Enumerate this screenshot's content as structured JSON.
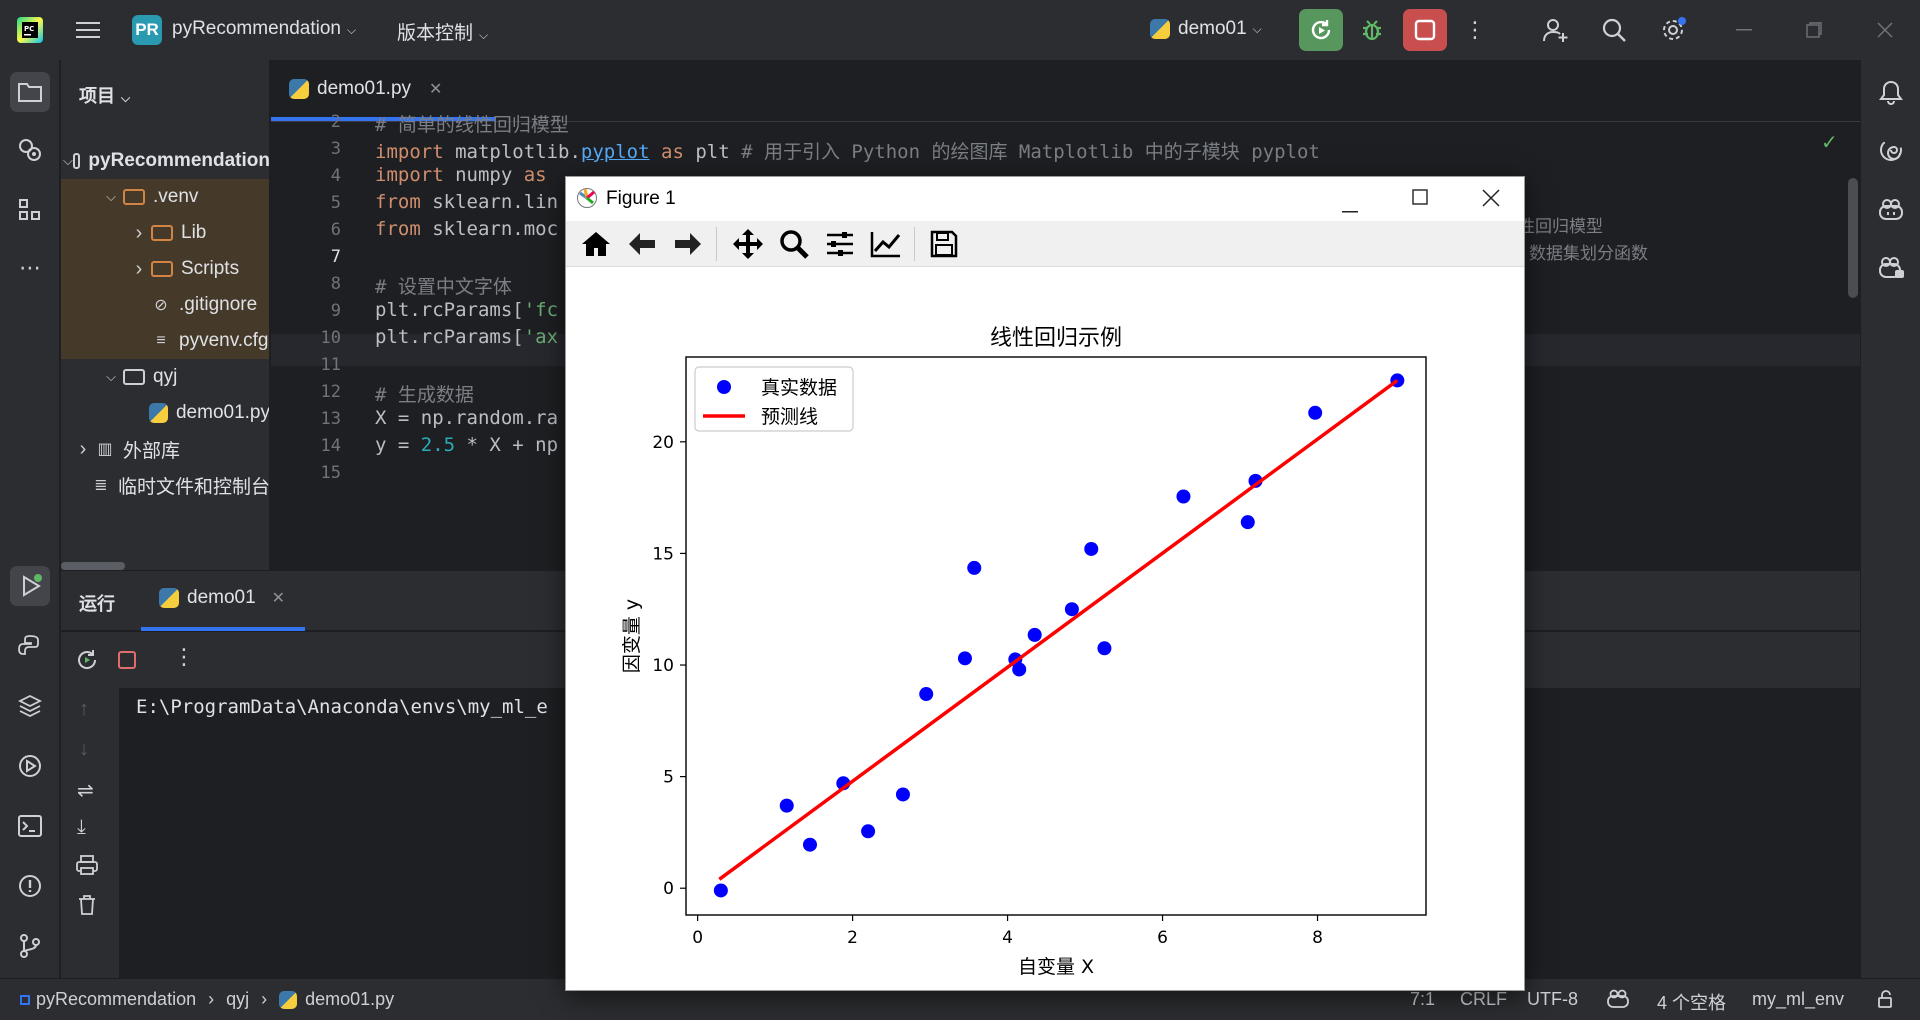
{
  "titlebar": {
    "project_badge": "PR",
    "project_name": "pyRecommendation",
    "vcs_label": "版本控制",
    "run_config": "demo01"
  },
  "left_strip": {
    "items": [
      "folder-icon",
      "project-structure-icon",
      "plugins-icon",
      "more-icon",
      "run-icon",
      "python-console-icon",
      "layers-icon",
      "services-icon",
      "terminal-icon",
      "problems-icon",
      "git-icon"
    ]
  },
  "project_panel": {
    "header": "项目",
    "tree": [
      {
        "label": "pyRecommendation",
        "kind": "folder",
        "depth": 1,
        "expanded": true,
        "bold": true
      },
      {
        "label": ".venv",
        "kind": "folder-orange",
        "depth": 2,
        "expanded": true
      },
      {
        "label": "Lib",
        "kind": "folder-orange",
        "depth": 3,
        "expanded": false
      },
      {
        "label": "Scripts",
        "kind": "folder-orange",
        "depth": 3,
        "expanded": false
      },
      {
        "label": ".gitignore",
        "kind": "ignore",
        "depth": 3
      },
      {
        "label": "pyvenv.cfg",
        "kind": "text",
        "depth": 3
      },
      {
        "label": "qyj",
        "kind": "folder",
        "depth": 2,
        "expanded": true
      },
      {
        "label": "demo01.py",
        "kind": "python",
        "depth": 3
      },
      {
        "label": "外部库",
        "kind": "library",
        "depth": 1,
        "expanded": false
      },
      {
        "label": "临时文件和控制台",
        "kind": "scratch",
        "depth": 1
      }
    ]
  },
  "editor": {
    "tab_label": "demo01.py",
    "line_numbers": [
      "2",
      "3",
      "4",
      "5",
      "6",
      "7",
      "8",
      "9",
      "10",
      "11",
      "12",
      "13",
      "14",
      "15"
    ],
    "lines": [
      {
        "n": "3",
        "parts": [
          [
            "kw",
            "import "
          ],
          [
            "",
            "matplotlib."
          ],
          [
            "lnk",
            "pyplot"
          ],
          [
            "kw",
            " as "
          ],
          [
            "",
            "plt "
          ],
          [
            "cm",
            "# 用于引入 Python 的绘图库 Matplotlib 中的子模块 pyplot"
          ]
        ]
      },
      {
        "n": "4",
        "parts": [
          [
            "kw",
            "import "
          ],
          [
            "",
            "numpy "
          ],
          [
            "kw",
            "as"
          ]
        ]
      },
      {
        "n": "5",
        "parts": [
          [
            "kw",
            "from "
          ],
          [
            "",
            "sklearn.lin"
          ]
        ]
      },
      {
        "n": "6",
        "parts": [
          [
            "kw",
            "from "
          ],
          [
            "",
            "sklearn.moc"
          ]
        ]
      },
      {
        "n": "8",
        "parts": [
          [
            "cm",
            "# 设置中文字体"
          ]
        ]
      },
      {
        "n": "9",
        "parts": [
          [
            "",
            "plt.rcParams["
          ],
          [
            "str",
            "'fc"
          ]
        ]
      },
      {
        "n": "10",
        "parts": [
          [
            "",
            "plt.rcParams["
          ],
          [
            "str",
            "'ax"
          ]
        ]
      },
      {
        "n": "12",
        "parts": [
          [
            "cm",
            "# 生成数据"
          ]
        ]
      },
      {
        "n": "13",
        "parts": [
          [
            "",
            "X = np.random.ra"
          ]
        ]
      },
      {
        "n": "14",
        "parts": [
          [
            "",
            "y = "
          ],
          [
            "num",
            "2.5"
          ],
          [
            "",
            " * X + np"
          ]
        ]
      }
    ],
    "partial_line_2": "# 简单的线性回归模型",
    "right_comment_5": "性回归模型",
    "right_comment_6": "数据集划分函数"
  },
  "run_panel": {
    "title": "运行",
    "tab_label": "demo01",
    "console_line": "E:\\ProgramData\\Anaconda\\envs\\my_ml_e"
  },
  "statusbar": {
    "crumbs": [
      "pyRecommendation",
      "qyj",
      "demo01.py"
    ],
    "position": "7:1",
    "line_sep": "CRLF",
    "encoding": "UTF-8",
    "indent": "4 个空格",
    "interpreter": "my_ml_env"
  },
  "figure": {
    "window_title": "Figure 1",
    "tools": [
      "home-icon",
      "back-icon",
      "forward-icon",
      "pan-icon",
      "zoom-icon",
      "subplots-icon",
      "edit-axes-icon",
      "save-icon"
    ]
  },
  "chart_data": {
    "type": "scatter",
    "title": "线性回归示例",
    "xlabel": "自变量 X",
    "ylabel": "因变量 y",
    "xlim": [
      -0.15,
      9.4
    ],
    "ylim": [
      -1.2,
      23.8
    ],
    "xticks": [
      0,
      2,
      4,
      6,
      8
    ],
    "yticks": [
      0,
      5,
      10,
      15,
      20
    ],
    "legend_position": "upper-left",
    "series": [
      {
        "name": "真实数据",
        "kind": "scatter",
        "color": "#0000ff",
        "x": [
          0.3,
          1.15,
          1.45,
          1.88,
          2.2,
          2.65,
          2.95,
          3.45,
          3.57,
          4.1,
          4.15,
          4.35,
          4.83,
          5.08,
          5.25,
          6.27,
          7.1,
          7.2,
          7.97,
          9.03
        ],
        "y": [
          -0.1,
          3.7,
          1.95,
          4.7,
          2.55,
          4.2,
          8.7,
          10.3,
          14.35,
          10.25,
          9.8,
          11.35,
          12.5,
          15.2,
          10.75,
          17.55,
          16.4,
          18.25,
          21.3,
          22.75
        ]
      },
      {
        "name": "预测线",
        "kind": "line",
        "color": "#ff0000",
        "x": [
          0.28,
          9.03
        ],
        "y": [
          0.4,
          22.75
        ]
      }
    ]
  }
}
